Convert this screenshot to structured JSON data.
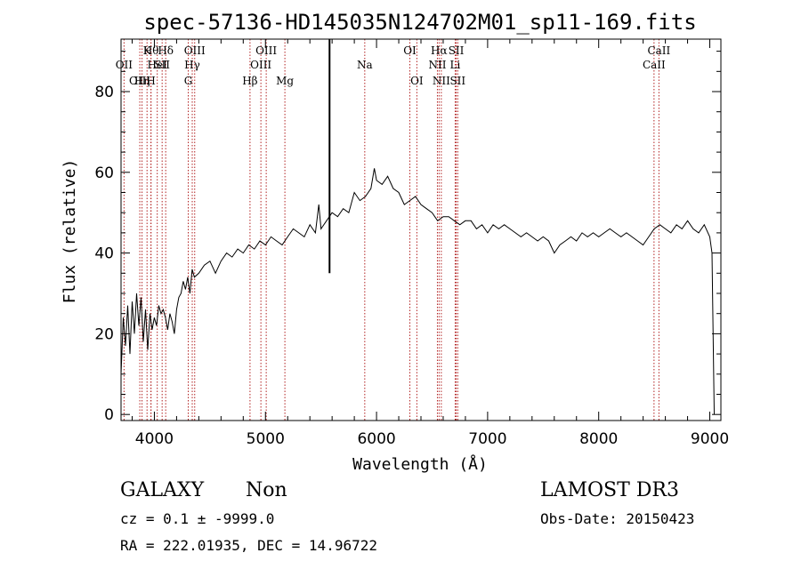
{
  "chart_data": {
    "type": "line",
    "title": "spec-57136-HD145035N124702M01_sp11-169.fits",
    "xlabel": "Wavelength (Å)",
    "ylabel": "Flux (relative)",
    "xlim": [
      3700,
      9100
    ],
    "ylim": [
      -1.5,
      93
    ],
    "x_ticks": [
      4000,
      5000,
      6000,
      7000,
      8000,
      9000
    ],
    "y_ticks": [
      0,
      20,
      40,
      60,
      80
    ],
    "marker_wavelength": 5577,
    "series": [
      {
        "x": [
          3700,
          3720,
          3740,
          3760,
          3780,
          3800,
          3820,
          3840,
          3860,
          3880,
          3900,
          3920,
          3940,
          3960,
          3980,
          4000,
          4020,
          4040,
          4060,
          4080,
          4100,
          4120,
          4140,
          4160,
          4180,
          4200,
          4220,
          4240,
          4260,
          4280,
          4300,
          4320,
          4340,
          4360,
          4400,
          4450,
          4500,
          4550,
          4600,
          4650,
          4700,
          4750,
          4800,
          4850,
          4900,
          4950,
          5000,
          5050,
          5100,
          5150,
          5200,
          5250,
          5300,
          5350,
          5400,
          5450,
          5480,
          5500,
          5550,
          5600,
          5650,
          5700,
          5750,
          5800,
          5850,
          5900,
          5950,
          5980,
          6000,
          6050,
          6100,
          6150,
          6200,
          6250,
          6300,
          6350,
          6400,
          6450,
          6500,
          6550,
          6600,
          6650,
          6700,
          6750,
          6800,
          6850,
          6900,
          6950,
          7000,
          7050,
          7100,
          7150,
          7200,
          7250,
          7300,
          7350,
          7400,
          7450,
          7500,
          7550,
          7600,
          7650,
          7700,
          7750,
          7800,
          7850,
          7900,
          7950,
          8000,
          8050,
          8100,
          8150,
          8200,
          8250,
          8300,
          8350,
          8400,
          8450,
          8500,
          8550,
          8600,
          8650,
          8700,
          8750,
          8800,
          8850,
          8900,
          8950,
          9000,
          9020,
          9040
        ],
        "y": [
          10,
          24,
          17,
          27,
          15,
          28,
          20,
          30,
          22,
          29,
          18,
          26,
          16,
          25,
          21,
          24,
          22,
          27,
          25,
          26,
          24,
          21,
          25,
          23,
          20,
          26,
          29,
          30,
          33,
          31,
          34,
          30,
          36,
          34,
          35,
          37,
          38,
          35,
          38,
          40,
          39,
          41,
          40,
          42,
          41,
          43,
          42,
          44,
          43,
          42,
          44,
          46,
          45,
          44,
          47,
          45,
          52,
          46,
          48,
          50,
          49,
          51,
          50,
          55,
          53,
          54,
          56,
          61,
          58,
          57,
          59,
          56,
          55,
          52,
          53,
          54,
          52,
          51,
          50,
          48,
          49,
          49,
          48,
          47,
          48,
          48,
          46,
          47,
          45,
          47,
          46,
          47,
          46,
          45,
          44,
          45,
          44,
          43,
          44,
          43,
          40,
          42,
          43,
          44,
          43,
          45,
          44,
          45,
          44,
          45,
          46,
          45,
          44,
          45,
          44,
          43,
          42,
          44,
          46,
          47,
          46,
          45,
          47,
          46,
          48,
          46,
          45,
          47,
          44,
          40,
          0
        ],
        "color": "#000000"
      }
    ],
    "emission_lines": [
      {
        "label": "Hθ",
        "wavelength": 3970,
        "row": 0
      },
      {
        "label": "OII",
        "wavelength": 3727,
        "row": 1
      },
      {
        "label": "HeI",
        "wavelength": 4026,
        "row": 1
      },
      {
        "label": "OIII",
        "wavelength": 3869,
        "row": 2
      },
      {
        "label": "Hη",
        "wavelength": 3889,
        "row": 2
      },
      {
        "label": "K",
        "wavelength": 3934,
        "row": 0
      },
      {
        "label": "H",
        "wavelength": 3969,
        "row": 2
      },
      {
        "label": "Hδ",
        "wavelength": 4102,
        "row": 0
      },
      {
        "label": "SII",
        "wavelength": 4070,
        "row": 1
      },
      {
        "label": "OIII",
        "wavelength": 4363,
        "row": 0
      },
      {
        "label": "Hγ",
        "wavelength": 4341,
        "row": 1
      },
      {
        "label": "G",
        "wavelength": 4305,
        "row": 2
      },
      {
        "label": "OIII",
        "wavelength": 5007,
        "row": 0
      },
      {
        "label": "OIII",
        "wavelength": 4959,
        "row": 1
      },
      {
        "label": "Hβ",
        "wavelength": 4861,
        "row": 2
      },
      {
        "label": "Mg",
        "wavelength": 5175,
        "row": 2
      },
      {
        "label": "Na",
        "wavelength": 5894,
        "row": 1
      },
      {
        "label": "OI",
        "wavelength": 6300,
        "row": 0
      },
      {
        "label": "OI",
        "wavelength": 6363,
        "row": 2
      },
      {
        "label": "Hα",
        "wavelength": 6563,
        "row": 0
      },
      {
        "label": "SII",
        "wavelength": 6717,
        "row": 0
      },
      {
        "label": "NII",
        "wavelength": 6548,
        "row": 1
      },
      {
        "label": "Li",
        "wavelength": 6708,
        "row": 1
      },
      {
        "label": "NII",
        "wavelength": 6583,
        "row": 2
      },
      {
        "label": "SII",
        "wavelength": 6731,
        "row": 2
      },
      {
        "label": "CaII",
        "wavelength": 8542,
        "row": 0
      },
      {
        "label": "CaII",
        "wavelength": 8498,
        "row": 1
      }
    ]
  },
  "info": {
    "class_label": "GALAXY",
    "subclass_label": "Non",
    "survey": "LAMOST DR3",
    "cz_line": "cz = 0.1 ± -9999.0",
    "obs_date": "Obs-Date: 20150423",
    "radec_line": "RA = 222.01935, DEC =  14.96722"
  }
}
